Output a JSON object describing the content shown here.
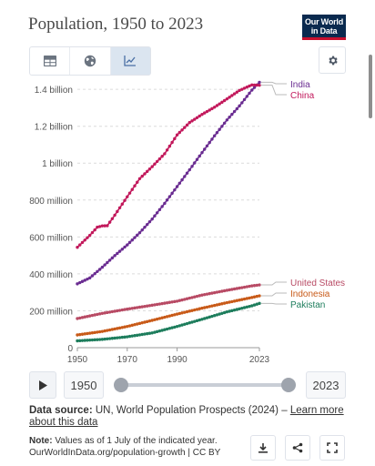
{
  "page": {
    "title": "Population, 1950 to 2023",
    "logo": {
      "line1": "Our World",
      "line2": "in Data"
    }
  },
  "toolbar": {
    "tabs": [
      {
        "icon": "table-icon",
        "active": false
      },
      {
        "icon": "globe-icon",
        "active": false
      },
      {
        "icon": "line-chart-icon",
        "active": true
      }
    ],
    "settings_icon": "gear-icon"
  },
  "chart_data": {
    "type": "line",
    "title": "Population, 1950 to 2023",
    "y_ticks": [
      {
        "value": 0,
        "label": "0"
      },
      {
        "value": 200000000,
        "label": "200 million"
      },
      {
        "value": 400000000,
        "label": "400 million"
      },
      {
        "value": 600000000,
        "label": "600 million"
      },
      {
        "value": 800000000,
        "label": "800 million"
      },
      {
        "value": 1000000000,
        "label": "1 billion"
      },
      {
        "value": 1200000000,
        "label": "1.2 billion"
      },
      {
        "value": 1400000000,
        "label": "1.4 billion"
      }
    ],
    "x_ticks": [
      "1950",
      "1970",
      "1990",
      "2023"
    ],
    "x_range": [
      1950,
      2023
    ],
    "y_range": [
      0,
      1450000000
    ],
    "grid": "horizontal dashed",
    "series": [
      {
        "name": "India",
        "color": "#6a2c91",
        "label_color": "#6a2c91",
        "points": [
          [
            1950,
            346000000
          ],
          [
            1955,
            378000000
          ],
          [
            1960,
            436000000
          ],
          [
            1965,
            499000000
          ],
          [
            1970,
            557000000
          ],
          [
            1975,
            623000000
          ],
          [
            1980,
            697000000
          ],
          [
            1985,
            782000000
          ],
          [
            1990,
            873000000
          ],
          [
            1995,
            964000000
          ],
          [
            2000,
            1057000000
          ],
          [
            2005,
            1148000000
          ],
          [
            2010,
            1234000000
          ],
          [
            2015,
            1310000000
          ],
          [
            2020,
            1396000000
          ],
          [
            2023,
            1438000000
          ]
        ]
      },
      {
        "name": "China",
        "color": "#c2185b",
        "label_color": "#c2185b",
        "points": [
          [
            1950,
            544000000
          ],
          [
            1955,
            609000000
          ],
          [
            1958,
            653000000
          ],
          [
            1960,
            660000000
          ],
          [
            1962,
            661000000
          ],
          [
            1965,
            718000000
          ],
          [
            1970,
            818000000
          ],
          [
            1975,
            916000000
          ],
          [
            1980,
            981000000
          ],
          [
            1985,
            1051000000
          ],
          [
            1990,
            1153000000
          ],
          [
            1995,
            1220000000
          ],
          [
            2000,
            1264000000
          ],
          [
            2005,
            1303000000
          ],
          [
            2010,
            1348000000
          ],
          [
            2015,
            1394000000
          ],
          [
            2020,
            1424000000
          ],
          [
            2023,
            1422000000
          ]
        ]
      },
      {
        "name": "United States",
        "color": "#b84a64",
        "label_color": "#b84a64",
        "points": [
          [
            1950,
            158000000
          ],
          [
            1960,
            186000000
          ],
          [
            1970,
            209000000
          ],
          [
            1980,
            230000000
          ],
          [
            1990,
            252000000
          ],
          [
            2000,
            285000000
          ],
          [
            2010,
            311000000
          ],
          [
            2020,
            335000000
          ],
          [
            2023,
            340000000
          ]
        ]
      },
      {
        "name": "Indonesia",
        "color": "#c85a18",
        "label_color": "#c85a18",
        "points": [
          [
            1950,
            69000000
          ],
          [
            1960,
            88000000
          ],
          [
            1970,
            115000000
          ],
          [
            1980,
            148000000
          ],
          [
            1990,
            182000000
          ],
          [
            2000,
            214000000
          ],
          [
            2010,
            244000000
          ],
          [
            2020,
            272000000
          ],
          [
            2023,
            281000000
          ]
        ]
      },
      {
        "name": "Pakistan",
        "color": "#1d7d5c",
        "label_color": "#1d7d5c",
        "points": [
          [
            1950,
            37000000
          ],
          [
            1960,
            45000000
          ],
          [
            1970,
            59000000
          ],
          [
            1980,
            80000000
          ],
          [
            1990,
            115000000
          ],
          [
            2000,
            154000000
          ],
          [
            2010,
            194000000
          ],
          [
            2020,
            227000000
          ],
          [
            2023,
            240000000
          ]
        ]
      }
    ]
  },
  "timeline": {
    "start_year": "1950",
    "end_year": "2023",
    "range": [
      1950,
      2023
    ],
    "start_value": 1950,
    "end_value": 2023
  },
  "source": {
    "label": "Data source:",
    "text": "UN, World Population Prospects (2024) –",
    "link": "Learn more about this data"
  },
  "note": {
    "label": "Note:",
    "text": "Values as of 1 July of the indicated year.",
    "url_text": "OurWorldInData.org/population-growth | CC BY"
  },
  "actions": [
    {
      "icon": "download-icon"
    },
    {
      "icon": "share-icon"
    },
    {
      "icon": "fullscreen-icon"
    }
  ]
}
